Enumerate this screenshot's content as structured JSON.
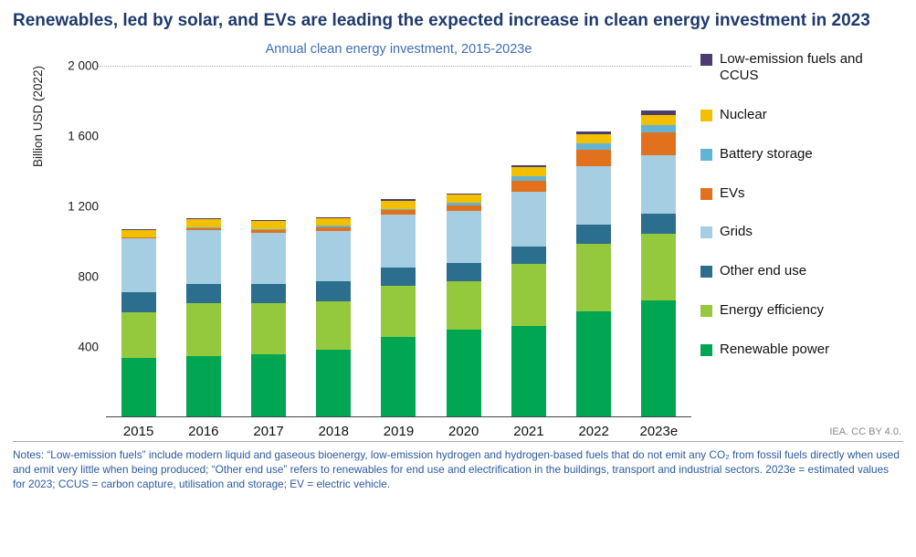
{
  "page": {
    "title": "Renewables, led by solar, and EVs are leading the expected increase in clean energy investment in 2023",
    "attribution": "IEA. CC BY 4.0.",
    "notes": "Notes: “Low-emission fuels” include modern liquid and gaseous bioenergy, low-emission hydrogen and hydrogen-based fuels that do not emit any CO₂ from fossil fuels directly when used and emit very little when being produced; “Other end use” refers to renewables for end use and electrification in the buildings, transport and industrial sectors. 2023e = estimated values for 2023; CCUS = carbon capture, utilisation and storage; EV = electric vehicle."
  },
  "chart_data": {
    "type": "bar",
    "stacked": true,
    "title": "Annual clean energy investment, 2015-2023e",
    "xlabel": "",
    "ylabel": "Billion USD (2022)",
    "ylim": [
      0,
      2000
    ],
    "grid": "dotted line at 2000 only",
    "legend_position": "right",
    "yticks": [
      {
        "value": 400,
        "label": "400"
      },
      {
        "value": 800,
        "label": "800"
      },
      {
        "value": 1200,
        "label": "1 200"
      },
      {
        "value": 1600,
        "label": "1 600"
      },
      {
        "value": 2000,
        "label": "2 000"
      }
    ],
    "categories": [
      "2015",
      "2016",
      "2017",
      "2018",
      "2019",
      "2020",
      "2021",
      "2022",
      "2023e"
    ],
    "series": [
      {
        "name": "Renewable power",
        "color": "#00a651",
        "values": [
          330,
          340,
          350,
          380,
          450,
          490,
          510,
          595,
          660
        ]
      },
      {
        "name": "Energy efficiency",
        "color": "#95c93d",
        "values": [
          260,
          300,
          290,
          275,
          290,
          275,
          355,
          385,
          375
        ]
      },
      {
        "name": "Other end use",
        "color": "#2b6e8d",
        "values": [
          115,
          110,
          110,
          110,
          105,
          105,
          100,
          110,
          115
        ]
      },
      {
        "name": "Grids",
        "color": "#a6cee3",
        "values": [
          305,
          310,
          295,
          290,
          300,
          295,
          310,
          330,
          335
        ]
      },
      {
        "name": "EVs",
        "color": "#e2711d",
        "values": [
          5,
          10,
          15,
          20,
          25,
          35,
          65,
          95,
          130
        ]
      },
      {
        "name": "Battery storage",
        "color": "#63b3d4",
        "values": [
          3,
          5,
          5,
          8,
          10,
          15,
          25,
          35,
          40
        ]
      },
      {
        "name": "Nuclear",
        "color": "#f3c000",
        "values": [
          40,
          45,
          45,
          45,
          45,
          45,
          50,
          55,
          60
        ]
      },
      {
        "name": "Low-emission fuels and CCUS",
        "color": "#4c3c70",
        "values": [
          5,
          5,
          5,
          5,
          8,
          8,
          12,
          15,
          25
        ]
      }
    ]
  }
}
